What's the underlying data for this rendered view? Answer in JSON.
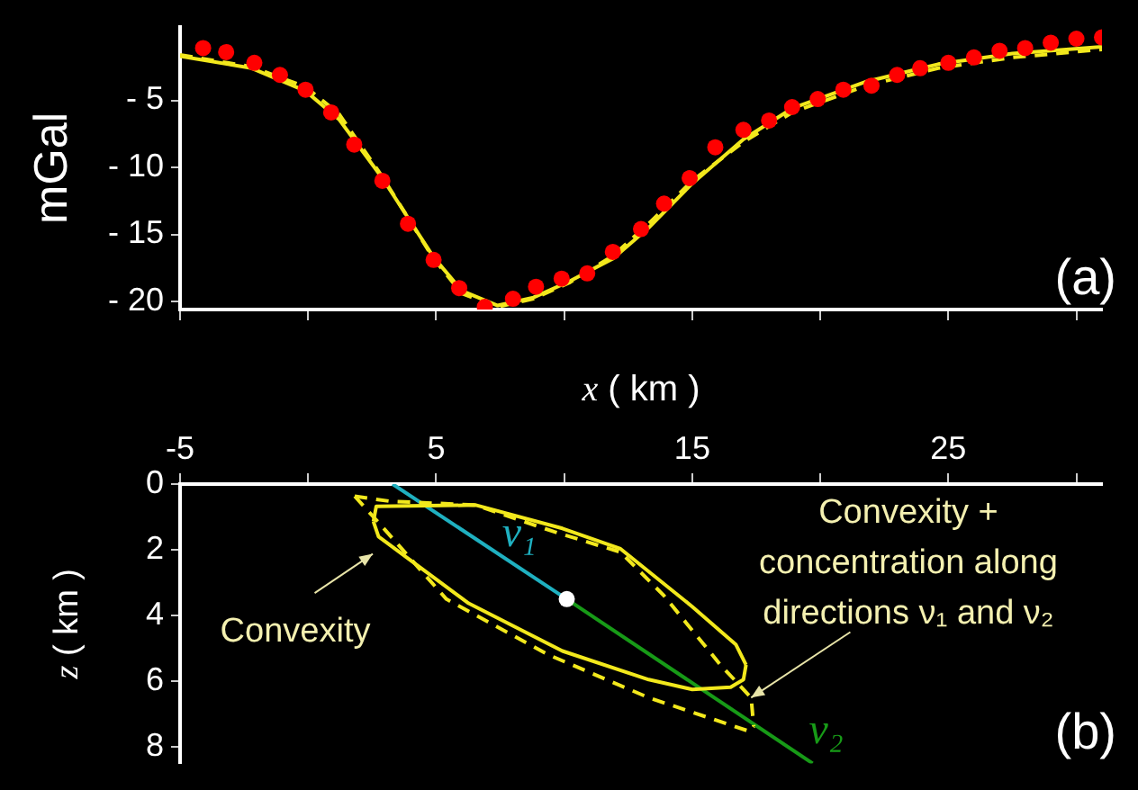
{
  "chart_data": [
    {
      "type": "line",
      "ylabel": "mGal",
      "xlim": [
        -5,
        31
      ],
      "xticks": [
        {
          "value": -5,
          "label": null
        },
        {
          "value": 0,
          "label": null
        },
        {
          "value": 5,
          "label": null
        },
        {
          "value": 10,
          "label": null
        },
        {
          "value": 15,
          "label": null
        },
        {
          "value": 20,
          "label": null
        },
        {
          "value": 25,
          "label": null
        },
        {
          "value": 30,
          "label": null
        }
      ],
      "ylim": [
        -20.6,
        0.5
      ],
      "yticks": [
        {
          "value": -5,
          "label": "- 5"
        },
        {
          "value": -10,
          "label": "- 10"
        },
        {
          "value": -15,
          "label": "- 15"
        },
        {
          "value": -20,
          "label": "- 20"
        }
      ],
      "tick_labels": "y",
      "grid": false,
      "legend": false,
      "annotations": [
        "(a)"
      ],
      "series": [
        {
          "type": "line",
          "color": "#f2e81c",
          "line_style": "dashed",
          "marker": "none",
          "x": [
            -5,
            -2.2,
            -0.1,
            1.2,
            2.9,
            4.9,
            6.0,
            7.4,
            8.8,
            10.2,
            11.9,
            13.3,
            15.0,
            17.0,
            18.9,
            21.8,
            24.6,
            27.5,
            31
          ],
          "values": [
            -1.6,
            -2.5,
            -4.0,
            -6.0,
            -10.7,
            -16.8,
            -19.4,
            -20.4,
            -19.8,
            -18.6,
            -16.6,
            -14.2,
            -11.0,
            -8.1,
            -5.9,
            -3.9,
            -2.6,
            -1.8,
            -1.2
          ]
        },
        {
          "type": "line",
          "color": "#f2e81c",
          "line_style": "solid",
          "marker": "none",
          "x": [
            -5,
            -2.2,
            -0.1,
            1.2,
            2.9,
            4.9,
            6.0,
            7.4,
            8.8,
            10.2,
            11.9,
            13.3,
            15.0,
            17.0,
            18.9,
            21.8,
            24.6,
            27.5,
            31
          ],
          "values": [
            -1.7,
            -2.6,
            -4.3,
            -6.4,
            -10.8,
            -16.7,
            -19.2,
            -20.3,
            -19.7,
            -18.5,
            -16.8,
            -14.5,
            -11.2,
            -7.9,
            -5.6,
            -3.6,
            -2.3,
            -1.5,
            -1.0
          ]
        },
        {
          "type": "scatter",
          "color": "#ff0000",
          "marker": "circle",
          "x": [
            -4.1,
            -3.2,
            -2.1,
            -1.1,
            -0.1,
            0.9,
            1.8,
            2.9,
            3.9,
            4.9,
            5.9,
            6.9,
            8.0,
            8.9,
            9.9,
            10.9,
            11.9,
            13.0,
            13.9,
            14.9,
            15.9,
            17.0,
            18.0,
            18.9,
            19.9,
            20.9,
            22.0,
            23.0,
            23.9,
            25.0,
            26.0,
            27.0,
            28.0,
            29.0,
            30.0,
            31.0
          ],
          "values": [
            -1.1,
            -1.4,
            -2.2,
            -3.1,
            -4.2,
            -5.9,
            -8.3,
            -11.0,
            -14.2,
            -16.9,
            -19.0,
            -20.4,
            -19.8,
            -18.9,
            -18.3,
            -17.9,
            -16.3,
            -14.6,
            -12.7,
            -10.8,
            -8.5,
            -7.2,
            -6.5,
            -5.5,
            -4.9,
            -4.2,
            -3.9,
            -3.1,
            -2.6,
            -2.2,
            -1.8,
            -1.3,
            -1.1,
            -0.7,
            -0.4,
            -0.3
          ]
        }
      ]
    },
    {
      "type": "line",
      "xlabel": "x ( km )",
      "ylabel": "z ( km )",
      "xlim": [
        -5,
        31
      ],
      "xticks": [
        -5,
        {
          "value": 0,
          "label": null
        },
        5,
        {
          "value": 10,
          "label": null
        },
        15,
        {
          "value": 20,
          "label": null
        },
        25,
        {
          "value": 30,
          "label": null
        }
      ],
      "ylim": [
        8.5,
        0
      ],
      "yticks": [
        0,
        2,
        4,
        6,
        8
      ],
      "grid": false,
      "legend": false,
      "annotations": [
        "(b)",
        "Convexity",
        {
          "text": "Convexity + concentration along directions ν₁ and ν₂",
          "x": 17.3,
          "y": 6.5
        }
      ],
      "series": [
        {
          "type": "line",
          "color": "#f2e81c",
          "line_style": "solid",
          "marker": "none",
          "x": [
            2.55,
            2.66,
            6.55,
            9.93,
            12.2,
            15.0,
            16.7,
            17.1
          ],
          "values": [
            1.14,
            0.68,
            0.64,
            1.35,
            1.97,
            3.73,
            4.88,
            5.5
          ]
        },
        {
          "type": "line",
          "color": "#f2e81c",
          "line_style": "solid",
          "marker": "none",
          "x": [
            2.55,
            2.75,
            6.27,
            9.93,
            13.3,
            15.0,
            16.5,
            17.0,
            17.1
          ],
          "values": [
            1.14,
            1.6,
            3.63,
            5.08,
            5.95,
            6.25,
            6.18,
            5.95,
            5.5
          ]
        },
        {
          "type": "line",
          "color": "#f2e81c",
          "line_style": "dashed",
          "marker": "none",
          "x": [
            1.82,
            3.17,
            6.55,
            9.6,
            12.2,
            13.9,
            16.1,
            17.3,
            17.4
          ],
          "values": [
            0.37,
            0.52,
            0.64,
            1.45,
            2.07,
            3.4,
            5.5,
            6.5,
            7.37
          ]
        },
        {
          "type": "line",
          "color": "#f2e81c",
          "line_style": "dashed",
          "marker": "none",
          "x": [
            1.82,
            2.6,
            5.4,
            9.4,
            13.3,
            17.25,
            17.4
          ],
          "values": [
            0.37,
            1.04,
            3.5,
            5.2,
            6.5,
            7.53,
            7.37
          ]
        },
        {
          "type": "line",
          "name": "ν₁",
          "color": "#1fb0c0",
          "line_style": "solid",
          "marker": "none",
          "x": [
            3.3,
            10.1
          ],
          "values": [
            0,
            3.5
          ]
        },
        {
          "type": "line",
          "name": "ν₂",
          "color": "#179a17",
          "line_style": "solid",
          "marker": "none",
          "x": [
            10.1,
            19.7
          ],
          "values": [
            3.5,
            8.5
          ]
        },
        {
          "type": "scatter",
          "color": "#ffffff",
          "marker": "circle",
          "x": [
            10.1
          ],
          "values": [
            3.5
          ]
        }
      ]
    }
  ]
}
